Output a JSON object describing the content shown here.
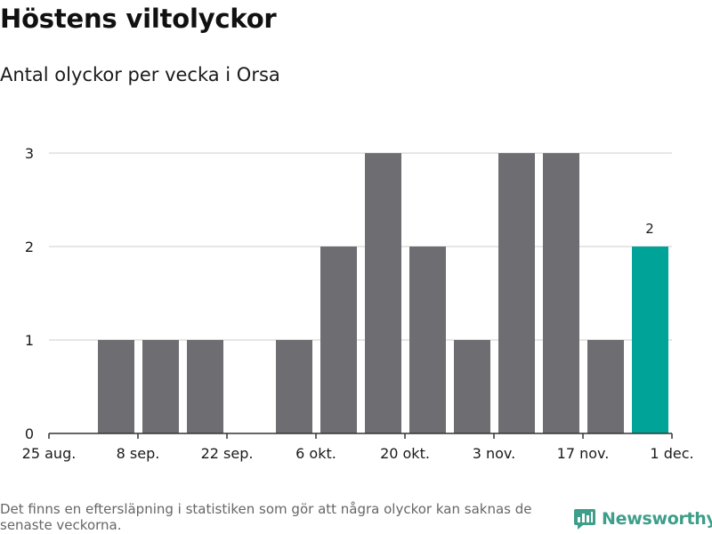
{
  "header": {
    "title": "Höstens viltolyckor",
    "subtitle": "Antal olyckor per vecka i Orsa"
  },
  "footer": {
    "note": "Det finns en eftersläpning i statistiken som gör att några olyckor kan saknas de senaste veckorna.",
    "brand": "Newsworthy"
  },
  "colors": {
    "bar": "#6e6d72",
    "highlight": "#00a398",
    "grid": "#dddddd",
    "brand": "#3d9e8a"
  },
  "chart_data": {
    "type": "bar",
    "x": [
      "2025-08-25",
      "2025-09-01",
      "2025-09-08",
      "2025-09-15",
      "2025-09-22",
      "2025-09-29",
      "2025-10-06",
      "2025-10-13",
      "2025-10-20",
      "2025-10-27",
      "2025-11-03",
      "2025-11-10",
      "2025-11-17",
      "2025-11-24"
    ],
    "values": [
      0,
      1,
      1,
      1,
      0,
      1,
      2,
      3,
      2,
      1,
      3,
      3,
      1,
      2
    ],
    "highlight_index": 13,
    "data_labels": [
      {
        "index": 13,
        "text": "2"
      }
    ],
    "y_ticks": [
      "0",
      "1",
      "2",
      "3"
    ],
    "y_tick_values": [
      0,
      1,
      2,
      3
    ],
    "x_tick_labels": [
      "25 aug.",
      "8 sep.",
      "22 sep.",
      "6 okt.",
      "20 okt.",
      "3 nov.",
      "17 nov.",
      "1 dec."
    ],
    "x_tick_positions": [
      0,
      2,
      4,
      6,
      8,
      10,
      12,
      14
    ],
    "ylim": [
      0,
      3
    ],
    "grid": true
  }
}
